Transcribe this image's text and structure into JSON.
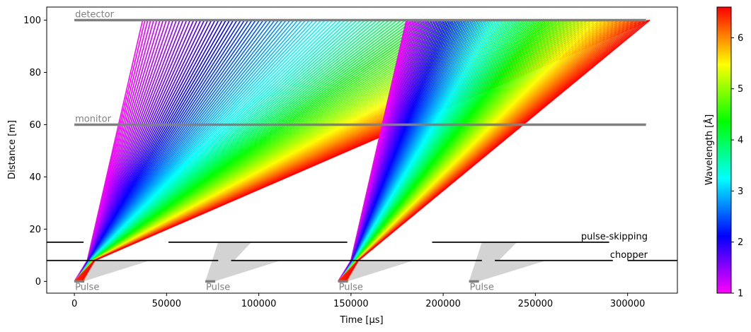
{
  "chart_data": {
    "type": "line",
    "title": "",
    "xlabel": "Time [µs]",
    "ylabel": "Distance [m]",
    "xlim": [
      -15000,
      327000
    ],
    "ylim": [
      -4.5,
      105
    ],
    "x_ticks": [
      0,
      50000,
      100000,
      150000,
      200000,
      250000,
      300000
    ],
    "x_tick_labels": [
      "0",
      "50000",
      "100000",
      "150000",
      "200000",
      "250000",
      "300000"
    ],
    "y_ticks": [
      0,
      20,
      40,
      60,
      80,
      100
    ],
    "y_tick_labels": [
      "0",
      "20",
      "40",
      "60",
      "80",
      "100"
    ],
    "grid": false,
    "colorbar": {
      "label": "Wavelength [Å]",
      "range": [
        1,
        6.6
      ],
      "ticks": [
        1,
        2,
        3,
        4,
        5,
        6
      ],
      "tick_labels": [
        "1",
        "2",
        "3",
        "4",
        "5",
        "6"
      ],
      "colormap": "gist_rainbow_r",
      "colors": [
        "#ff00ff",
        "#7f00ff",
        "#0000ff",
        "#0080ff",
        "#00ffff",
        "#00ff80",
        "#00ff00",
        "#80ff00",
        "#ffff00",
        "#ff8000",
        "#ff0000"
      ]
    },
    "components": [
      {
        "name": "detector",
        "distance": 100,
        "x_start": 0,
        "x_end": 310000,
        "color": "#808080"
      },
      {
        "name": "monitor",
        "distance": 60,
        "x_start": 0,
        "x_end": 310000,
        "color": "#808080"
      }
    ],
    "choppers": [
      {
        "name": "pulse-skipping",
        "distance": 15,
        "open_windows": [
          [
            5000,
            51000
          ],
          [
            148000,
            194000
          ]
        ],
        "closed_segments": [
          [
            -15000,
            5000
          ],
          [
            51000,
            148000
          ],
          [
            194000,
            290000
          ]
        ]
      },
      {
        "name": "chopper",
        "distance": 8,
        "open_windows": [
          [
            78000,
            85000
          ],
          [
            221000,
            228000
          ],
          [
            292000,
            300000
          ]
        ],
        "closed_segments": [
          [
            -15000,
            78000
          ],
          [
            85000,
            221000
          ],
          [
            228000,
            292000
          ],
          [
            300000,
            327000
          ]
        ]
      }
    ],
    "pulses": [
      {
        "label": "Pulse",
        "t_start": 0,
        "t_end": 5000,
        "transmitted": true
      },
      {
        "label": "Pulse",
        "t_start": 71000,
        "t_end": 76000,
        "transmitted": false
      },
      {
        "label": "Pulse",
        "t_start": 143000,
        "t_end": 148000,
        "transmitted": true
      },
      {
        "label": "Pulse",
        "t_start": 214000,
        "t_end": 219000,
        "transmitted": false
      }
    ],
    "transmitted_bundles": [
      {
        "pulse_index": 0,
        "chopper_time_range": [
          7000,
          11000
        ],
        "detector_time_range": [
          37000,
          312000
        ],
        "wavelength_range": [
          1,
          6.6
        ]
      },
      {
        "pulse_index": 2,
        "chopper_time_range": [
          150000,
          154000
        ],
        "detector_time_range": [
          180000,
          312000
        ],
        "wavelength_range": [
          1,
          6.6
        ]
      }
    ],
    "blocked_bundles": [
      {
        "pulse_index": 0,
        "chopper_distance": 8,
        "spread_to": 41000
      },
      {
        "pulse_index": 1,
        "chopper_distance": 15,
        "spread_to": 96000
      },
      {
        "pulse_index": 1,
        "chopper_distance": 8,
        "spread_to": 112000
      },
      {
        "pulse_index": 2,
        "chopper_distance": 8,
        "spread_to": 184000
      },
      {
        "pulse_index": 3,
        "chopper_distance": 15,
        "spread_to": 240000
      },
      {
        "pulse_index": 3,
        "chopper_distance": 8,
        "spread_to": 256000
      }
    ]
  }
}
